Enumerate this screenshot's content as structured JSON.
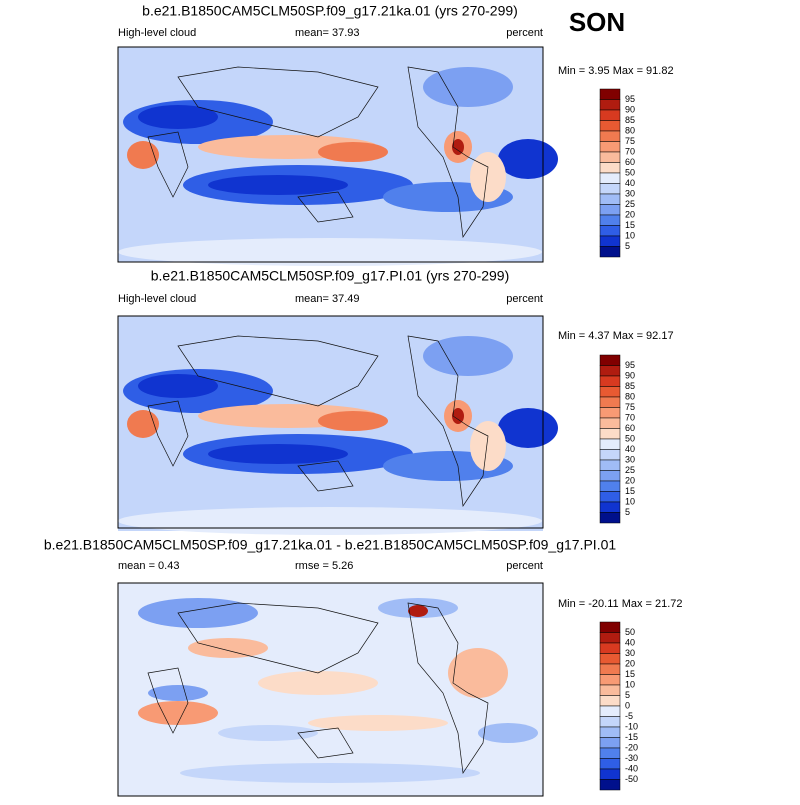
{
  "season": "SON",
  "panels": [
    {
      "title": "b.e21.B1850CAM5CLM50SP.f09_g17.21ka.01 (yrs 270-299)",
      "left": "High-level cloud",
      "middle": "mean=  37.93",
      "right": "percent",
      "min_max": "Min =   3.95 Max =  91.82",
      "colorbar": {
        "levels": [
          95,
          90,
          85,
          80,
          75,
          70,
          60,
          50,
          40,
          30,
          25,
          20,
          15,
          10,
          5
        ],
        "colors": [
          "#800000",
          "#b01c10",
          "#d83a20",
          "#e85a32",
          "#f07a50",
          "#f89a74",
          "#fabb9c",
          "#fcdcc8",
          "#e4ecfc",
          "#c4d6fa",
          "#a0bcf6",
          "#7ca0f2",
          "#5080ec",
          "#2f5ee6",
          "#1034d0",
          "#00108c"
        ]
      }
    },
    {
      "title": "b.e21.B1850CAM5CLM50SP.f09_g17.PI.01 (yrs 270-299)",
      "left": "High-level cloud",
      "middle": "mean=  37.49",
      "right": "percent",
      "min_max": "Min =   4.37 Max =  92.17",
      "colorbar": {
        "levels": [
          95,
          90,
          85,
          80,
          75,
          70,
          60,
          50,
          40,
          30,
          25,
          20,
          15,
          10,
          5
        ],
        "colors": [
          "#800000",
          "#b01c10",
          "#d83a20",
          "#e85a32",
          "#f07a50",
          "#f89a74",
          "#fabb9c",
          "#fcdcc8",
          "#e4ecfc",
          "#c4d6fa",
          "#a0bcf6",
          "#7ca0f2",
          "#5080ec",
          "#2f5ee6",
          "#1034d0",
          "#00108c"
        ]
      }
    },
    {
      "title": "b.e21.B1850CAM5CLM50SP.f09_g17.21ka.01 - b.e21.B1850CAM5CLM50SP.f09_g17.PI.01",
      "left": "mean =   0.43",
      "middle": "rmse =   5.26",
      "right": "percent",
      "min_max": "Min = -20.11 Max =  21.72",
      "colorbar": {
        "levels": [
          50,
          40,
          30,
          20,
          15,
          10,
          5,
          0,
          -5,
          -10,
          -15,
          -20,
          -30,
          -40,
          -50
        ],
        "colors": [
          "#800000",
          "#b01c10",
          "#d83a20",
          "#e85a32",
          "#f07a50",
          "#f89a74",
          "#fabb9c",
          "#fcdcc8",
          "#e4ecfc",
          "#c4d6fa",
          "#a0bcf6",
          "#7ca0f2",
          "#5080ec",
          "#2f5ee6",
          "#1034d0",
          "#00108c"
        ]
      }
    }
  ]
}
